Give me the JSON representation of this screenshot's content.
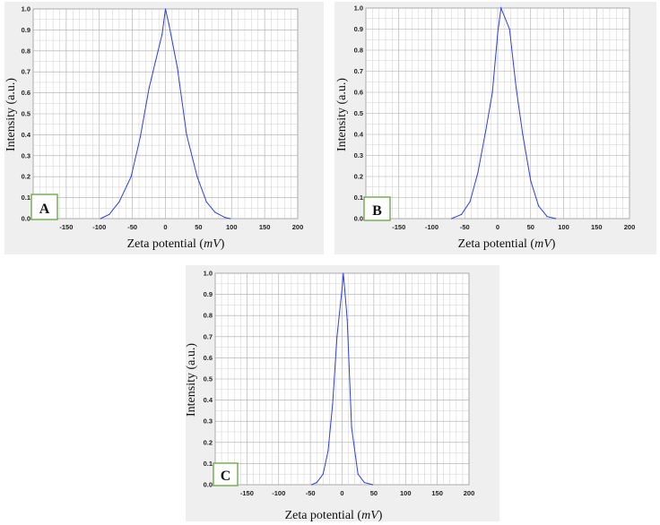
{
  "chart_data": [
    {
      "type": "line",
      "panel_label": "A",
      "xlabel": "Zeta potential",
      "xlabel_unit": "mV",
      "ylabel": "Intensity (a.u.)",
      "xlim": [
        -200,
        200
      ],
      "ylim": [
        0,
        1
      ],
      "x_ticks": [
        "-150",
        "-100",
        "-50",
        "0",
        "50",
        "100",
        "150",
        "200"
      ],
      "y_ticks": [
        "0.0",
        "0.1",
        "0.2",
        "0.3",
        "0.4",
        "0.5",
        "0.6",
        "0.7",
        "0.8",
        "0.9",
        "1.0"
      ],
      "grid": true,
      "series": [
        {
          "color": "#2f3ee8",
          "x": [
            -98,
            -85,
            -70,
            -52,
            -38,
            -25,
            -15,
            -5,
            0,
            5,
            18,
            32,
            48,
            62,
            75,
            90,
            98
          ],
          "y": [
            0.0,
            0.02,
            0.08,
            0.2,
            0.39,
            0.62,
            0.75,
            0.88,
            1.0,
            0.93,
            0.72,
            0.4,
            0.2,
            0.08,
            0.03,
            0.005,
            0.0
          ]
        }
      ]
    },
    {
      "type": "line",
      "panel_label": "B",
      "xlabel": "Zeta potential",
      "xlabel_unit": "mV",
      "ylabel": "Intensity (a.u.)",
      "xlim": [
        -200,
        200
      ],
      "ylim": [
        0,
        1
      ],
      "x_ticks": [
        "-150",
        "-100",
        "-50",
        "0",
        "50",
        "100",
        "150",
        "200"
      ],
      "y_ticks": [
        "0.0",
        "0.1",
        "0.2",
        "0.3",
        "0.4",
        "0.5",
        "0.6",
        "0.7",
        "0.8",
        "0.9",
        "1.0"
      ],
      "grid": true,
      "series": [
        {
          "color": "#2f3ee8",
          "x": [
            -70,
            -55,
            -42,
            -30,
            -18,
            -8,
            0,
            5,
            18,
            28,
            38,
            50,
            62,
            75,
            88
          ],
          "y": [
            0.0,
            0.02,
            0.08,
            0.22,
            0.42,
            0.6,
            0.88,
            1.0,
            0.9,
            0.62,
            0.4,
            0.18,
            0.06,
            0.01,
            0.0
          ]
        }
      ]
    },
    {
      "type": "line",
      "panel_label": "C",
      "xlabel": "Zeta potential",
      "xlabel_unit": "mV",
      "ylabel": "Intensity (a.u.)",
      "xlim": [
        -200,
        200
      ],
      "ylim": [
        0,
        1
      ],
      "x_ticks": [
        "-150",
        "-100",
        "-50",
        "0",
        "50",
        "100",
        "150",
        "200"
      ],
      "y_ticks": [
        "0.0",
        "0.1",
        "0.2",
        "0.3",
        "0.4",
        "0.5",
        "0.6",
        "0.7",
        "0.8",
        "0.9",
        "1.0"
      ],
      "grid": true,
      "series": [
        {
          "color": "#2f3ee8",
          "x": [
            -48,
            -40,
            -30,
            -22,
            -15,
            -8,
            0,
            2,
            8,
            15,
            25,
            35,
            48
          ],
          "y": [
            0.0,
            0.01,
            0.05,
            0.16,
            0.38,
            0.7,
            0.93,
            1.0,
            0.78,
            0.27,
            0.05,
            0.01,
            0.0
          ]
        }
      ]
    }
  ]
}
